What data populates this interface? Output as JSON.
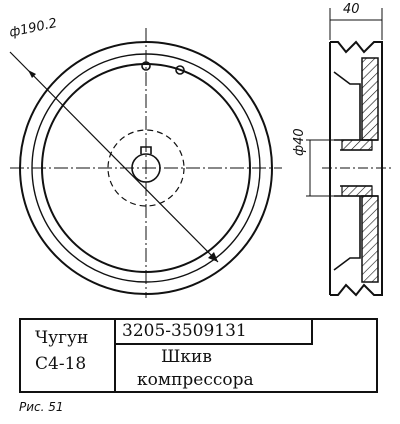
{
  "dimensions": {
    "outer_diameter": "ф190.2",
    "width": "40",
    "hub_diameter": "ф40"
  },
  "title_block": {
    "material_line1": "Чугун",
    "material_line2": "С4-18",
    "part_number": "3205-3509131",
    "part_name_line1": "Шкив",
    "part_name_line2": "компрессора"
  },
  "caption": "Рис. 51"
}
